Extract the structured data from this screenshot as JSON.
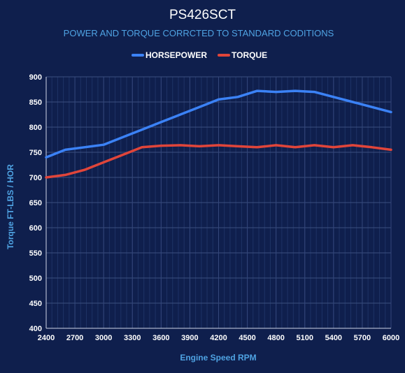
{
  "chart_data": {
    "type": "line",
    "title": "PS426SCT",
    "subtitle": "POWER AND TORQUE CORRCTED TO STANDARD CODITIONS",
    "xlabel": "Engine Speed RPM",
    "ylabel": "Torque FT-LBS / HOR",
    "xlim": [
      2400,
      6000
    ],
    "ylim": [
      400,
      900
    ],
    "x_ticks": [
      2400,
      2700,
      3000,
      3300,
      3600,
      3900,
      4200,
      4500,
      4800,
      5100,
      5400,
      5700,
      6000
    ],
    "y_ticks": [
      400,
      450,
      500,
      550,
      600,
      650,
      700,
      750,
      800,
      850,
      900
    ],
    "grid": true,
    "legend_position": "top",
    "x": [
      2400,
      2600,
      2800,
      3000,
      3200,
      3400,
      3600,
      3800,
      4000,
      4200,
      4400,
      4600,
      4800,
      5000,
      5200,
      5400,
      5600,
      5800,
      6000
    ],
    "series": [
      {
        "name": "HORSEPOWER",
        "color": "#3b82f6",
        "values": [
          740,
          755,
          760,
          765,
          780,
          795,
          810,
          825,
          840,
          855,
          860,
          872,
          870,
          872,
          870,
          860,
          850,
          840,
          830
        ]
      },
      {
        "name": "TORQUE",
        "color": "#e0453a",
        "values": [
          700,
          705,
          715,
          730,
          745,
          760,
          763,
          764,
          762,
          764,
          762,
          760,
          764,
          760,
          764,
          760,
          764,
          760,
          755
        ]
      }
    ]
  }
}
